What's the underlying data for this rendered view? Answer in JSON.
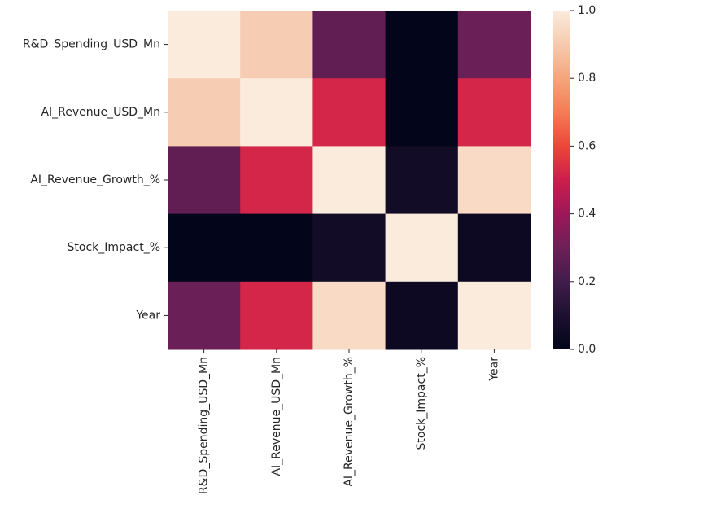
{
  "chart_data": {
    "type": "heatmap",
    "title": "",
    "xlabel": "",
    "ylabel": "",
    "rows": [
      "R&D_Spending_USD_Mn",
      "AI_Revenue_USD_Mn",
      "AI_Revenue_Growth_%",
      "Stock_Impact_%",
      "Year"
    ],
    "columns": [
      "R&D_Spending_USD_Mn",
      "AI_Revenue_USD_Mn",
      "AI_Revenue_Growth_%",
      "Stock_Impact_%",
      "Year"
    ],
    "values": [
      [
        1.0,
        0.91,
        0.27,
        0.0,
        0.29
      ],
      [
        0.91,
        1.0,
        0.52,
        0.0,
        0.52
      ],
      [
        0.27,
        0.52,
        1.0,
        0.06,
        0.95
      ],
      [
        0.0,
        0.0,
        0.06,
        1.0,
        0.04
      ],
      [
        0.29,
        0.52,
        0.95,
        0.04,
        1.0
      ]
    ],
    "colorbar": {
      "min": 0.0,
      "max": 1.0,
      "ticks": [
        "0.0",
        "0.2",
        "0.4",
        "0.6",
        "0.8",
        "1.0"
      ],
      "colormap": "rocket"
    },
    "grid": false,
    "legend": "colorbar-right"
  }
}
